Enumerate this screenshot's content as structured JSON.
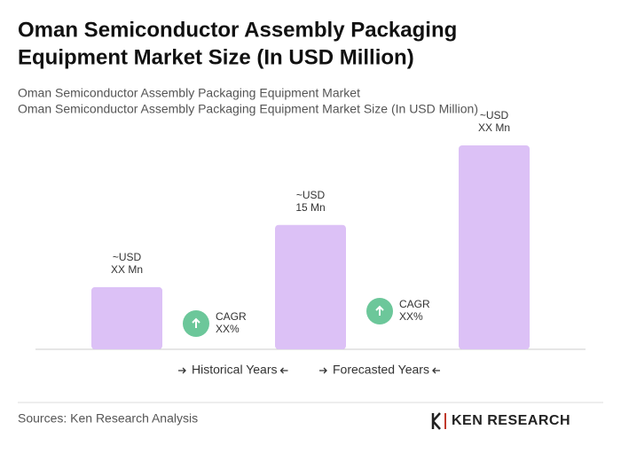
{
  "chart_data": {
    "type": "bar",
    "title": [
      "Oman Semiconductor Assembly Packaging",
      "Equipment Market Size (In USD Million)"
    ],
    "subtitle": [
      "Oman Semiconductor Assembly Packaging Equipment Market",
      "Oman Semiconductor Assembly Packaging Equipment Market Size (In USD Million)"
    ],
    "categories": [
      null,
      null,
      null
    ],
    "values": [
      7.5,
      15,
      24.6
    ],
    "value_labels": [
      [
        "~USD",
        "XX Mn"
      ],
      [
        "~USD",
        "15 Mn"
      ],
      [
        "~USD",
        "XX Mn"
      ]
    ],
    "color": "#dcc1f6",
    "cagr_labels": [
      [
        "CAGR",
        "XX%"
      ],
      [
        "CAGR",
        "XX%"
      ]
    ],
    "cagr_color": "#6cc79a",
    "periods": [
      "Historical Years",
      "Forecasted Years"
    ],
    "source": "Sources: Ken Research Analysis",
    "logo": "KEN RESEARCH"
  }
}
